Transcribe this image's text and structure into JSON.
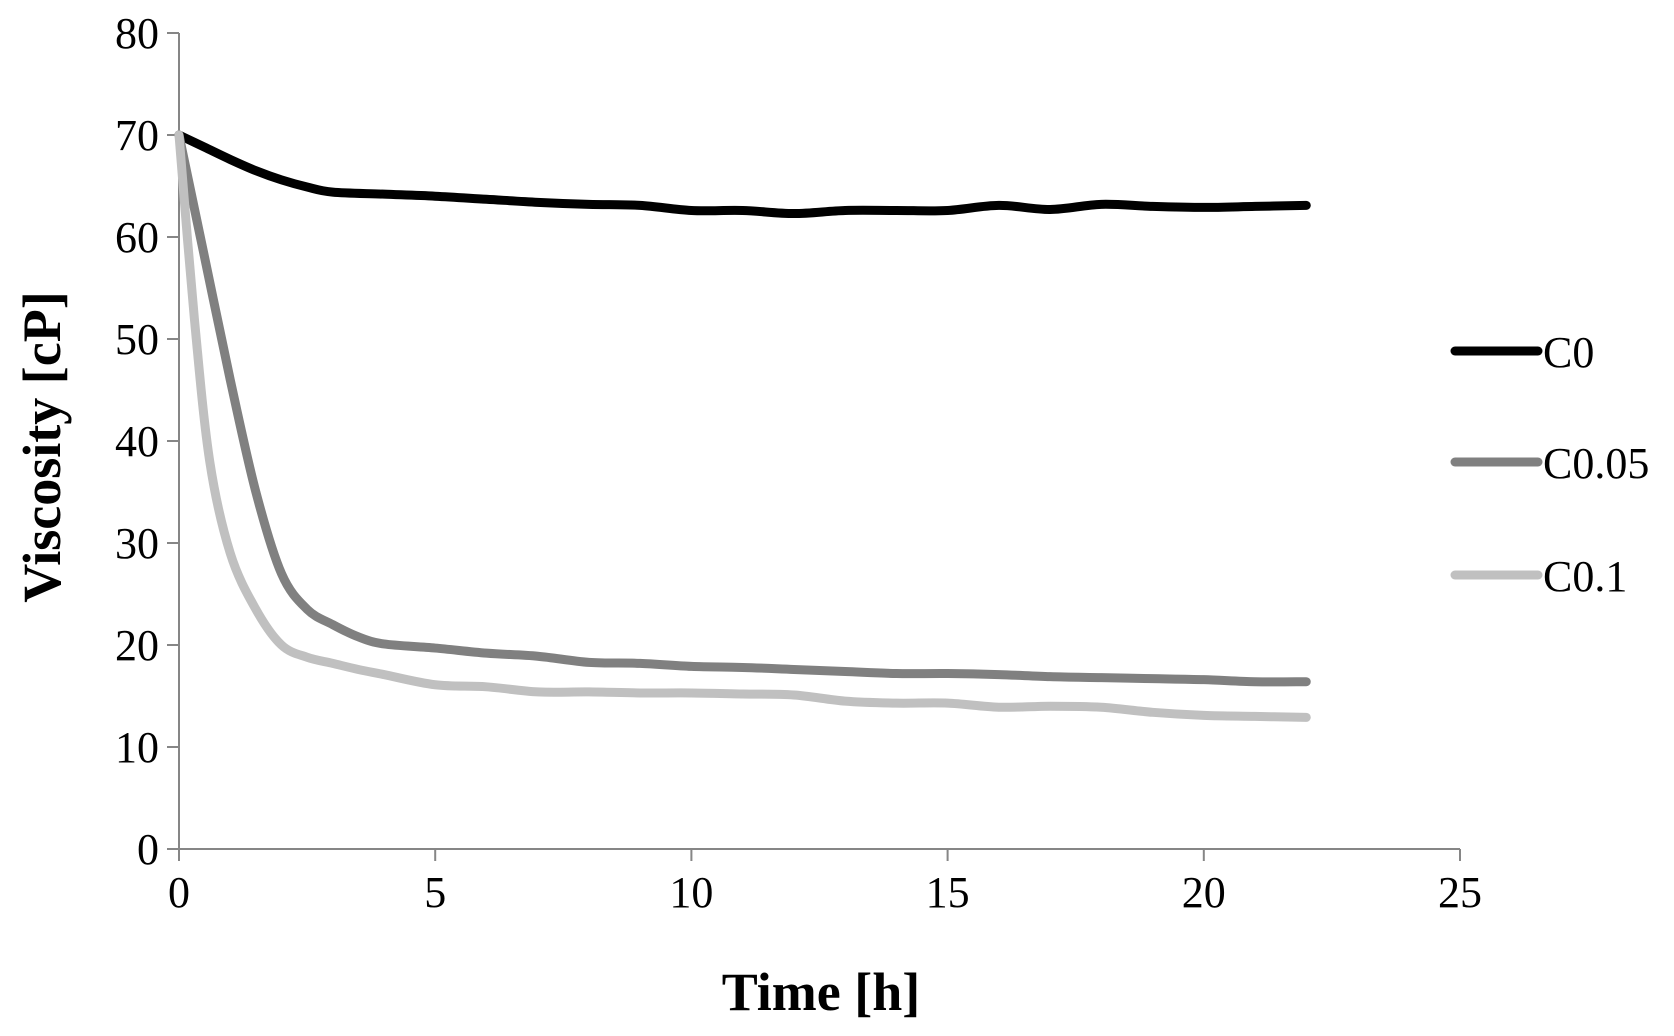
{
  "chart_data": {
    "type": "line",
    "title": "",
    "xlabel": "Time [h]",
    "ylabel": "Viscosity [cP]",
    "xlim": [
      0,
      25
    ],
    "ylim": [
      0,
      80
    ],
    "x_ticks": [
      "0",
      "5",
      "10",
      "15",
      "20",
      "25"
    ],
    "y_ticks": [
      "0",
      "10",
      "20",
      "30",
      "40",
      "50",
      "60",
      "70",
      "80"
    ],
    "grid": false,
    "legend_position": "right",
    "series": [
      {
        "name": "C0",
        "color": "#000000",
        "x": [
          0,
          0.5,
          1,
          1.5,
          2,
          2.5,
          3,
          4,
          5,
          6,
          7,
          8,
          9,
          10,
          11,
          12,
          13,
          14,
          15,
          16,
          17,
          18,
          19,
          20,
          21,
          22
        ],
        "y": [
          70,
          68.8,
          67.6,
          66.5,
          65.6,
          64.9,
          64.4,
          64.2,
          64.0,
          63.7,
          63.4,
          63.2,
          63.1,
          62.6,
          62.6,
          62.3,
          62.6,
          62.6,
          62.6,
          63.1,
          62.7,
          63.2,
          63.0,
          62.9,
          63.0,
          63.1
        ]
      },
      {
        "name": "C0.05",
        "color": "#808080",
        "x": [
          0,
          0.5,
          1,
          1.5,
          2,
          2.5,
          3,
          3.5,
          4,
          5,
          6,
          7,
          8,
          9,
          10,
          11,
          12,
          13,
          14,
          15,
          16,
          17,
          18,
          19,
          20,
          21,
          22
        ],
        "y": [
          70,
          58,
          46,
          35,
          27,
          23.5,
          22,
          20.8,
          20.1,
          19.7,
          19.2,
          18.9,
          18.3,
          18.2,
          17.9,
          17.8,
          17.6,
          17.4,
          17.2,
          17.2,
          17.1,
          16.9,
          16.8,
          16.7,
          16.6,
          16.4,
          16.4
        ]
      },
      {
        "name": "C0.1",
        "color": "#c0c0c0",
        "x": [
          0,
          0.3,
          0.6,
          1,
          1.5,
          2,
          2.5,
          3,
          3.5,
          4,
          5,
          6,
          7,
          8,
          9,
          10,
          11,
          12,
          13,
          14,
          15,
          16,
          17,
          18,
          19,
          20,
          21,
          22
        ],
        "y": [
          70,
          52,
          38,
          29,
          23.5,
          20,
          18.8,
          18.2,
          17.6,
          17.1,
          16.1,
          15.9,
          15.4,
          15.4,
          15.3,
          15.3,
          15.2,
          15.1,
          14.5,
          14.3,
          14.3,
          13.9,
          14.0,
          13.9,
          13.4,
          13.1,
          13.0,
          12.9
        ]
      }
    ]
  }
}
